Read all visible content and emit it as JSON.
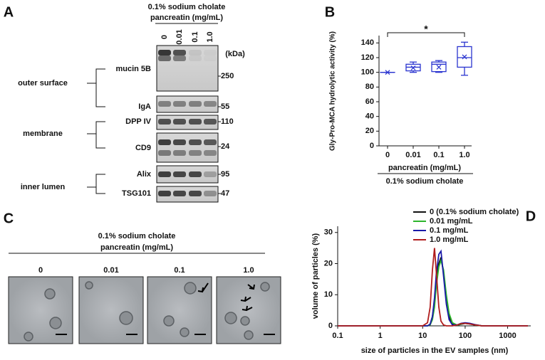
{
  "panel_a": {
    "label": "A",
    "header": [
      "0.1%  sodium cholate",
      "pancreatin (mg/mL)"
    ],
    "lanes": [
      "0",
      "0.01",
      "0.1",
      "1.0"
    ],
    "unit": "(kDa)",
    "rows": [
      {
        "protein": "mucin 5B",
        "mw": "250"
      },
      {
        "protein": "IgA",
        "mw": "55"
      },
      {
        "protein": "DPP IV",
        "mw": "110"
      },
      {
        "protein": "CD9",
        "mw": "24"
      },
      {
        "protein": "Alix",
        "mw": "95"
      },
      {
        "protein": "TSG101",
        "mw": "47"
      }
    ],
    "groups": [
      "outer surface",
      "membrane",
      "inner lumen"
    ]
  },
  "panel_c": {
    "label": "C",
    "header": [
      "0.1% sodium cholate",
      "pancreatin (mg/mL)"
    ],
    "lanes": [
      "0",
      "0.01",
      "0.1",
      "1.0"
    ]
  },
  "chart_data": [
    {
      "type": "box",
      "label": "B",
      "title": "",
      "y_label": "Gly-Pro-MCA hydrolytic activity (%)",
      "x_label": "pancreatin (mg/mL)",
      "x_sublabel": "0.1% sodium cholate",
      "annotation": "*",
      "categories": [
        "0",
        "0.01",
        "0.1",
        "1.0"
      ],
      "color": "#2b35d0",
      "boxes": [
        {
          "min": 100,
          "q1": 100,
          "median": 100,
          "q3": 100,
          "max": 100,
          "mean": 100
        },
        {
          "min": 100,
          "q1": 102,
          "median": 107,
          "q3": 111,
          "max": 114,
          "mean": 106
        },
        {
          "min": 100,
          "q1": 101,
          "median": 111,
          "q3": 114,
          "max": 116,
          "mean": 107
        },
        {
          "min": 96,
          "q1": 107,
          "median": 120,
          "q3": 135,
          "max": 141,
          "mean": 121
        }
      ],
      "ylim": [
        0,
        150
      ],
      "yticks": [
        0,
        20,
        40,
        60,
        80,
        100,
        120,
        140
      ]
    },
    {
      "type": "line",
      "label": "D",
      "x_label": "size of particles in the EV samples (nm)",
      "y_label": "volume of particles (%)",
      "log_x": true,
      "x": [
        0.1,
        10,
        13,
        15,
        17,
        19,
        21,
        24,
        27,
        31,
        36,
        42,
        50,
        65,
        80,
        100,
        130,
        170,
        250,
        3000
      ],
      "series": [
        {
          "name": "0 (0.1% sodium cholate)",
          "color": "#111111",
          "values": [
            0,
            0,
            0,
            0.5,
            3,
            8,
            15,
            20,
            22,
            17,
            9,
            3,
            0.5,
            0.2,
            0.5,
            0.8,
            0.6,
            0.3,
            0,
            0
          ]
        },
        {
          "name": "0.01 mg/mL",
          "color": "#2db52d",
          "values": [
            0,
            0,
            0,
            0.3,
            2,
            6,
            13,
            19,
            21,
            18,
            10,
            4,
            1,
            0.2,
            0.6,
            0.9,
            0.7,
            0.3,
            0,
            0
          ]
        },
        {
          "name": "0.1 mg/mL",
          "color": "#1a1aa8",
          "values": [
            0,
            0,
            0,
            0.5,
            3,
            9,
            17,
            23,
            24,
            16,
            7,
            2,
            0.3,
            0.3,
            0.8,
            1,
            0.8,
            0.4,
            0,
            0
          ]
        },
        {
          "name": "1.0 mg/mL",
          "color": "#b01c1c",
          "values": [
            0,
            0,
            1,
            6,
            18,
            25,
            17,
            6,
            1.5,
            0.3,
            0,
            0,
            0,
            0.3,
            0.7,
            0.8,
            0.6,
            0.3,
            0,
            0
          ]
        }
      ],
      "xlim": [
        0.1,
        3500
      ],
      "xticks": [
        0.1,
        1,
        10,
        100,
        1000
      ],
      "ylim": [
        0,
        32
      ],
      "yticks": [
        0,
        10,
        20,
        30
      ]
    }
  ]
}
